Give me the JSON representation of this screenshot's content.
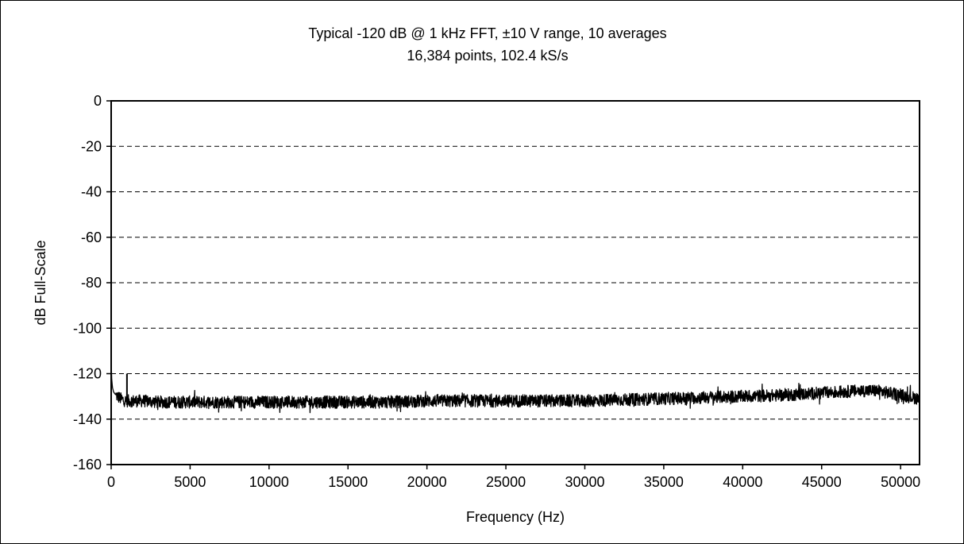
{
  "chart_data": {
    "type": "line",
    "title": "Typical -120 dB @ 1 kHz FFT, ±10 V range, 10 averages",
    "subtitle": "16,384 points, 102.4 kS/s",
    "xlabel": "Frequency (Hz)",
    "ylabel": "dB Full-Scale",
    "xlim": [
      0,
      51200
    ],
    "ylim": [
      -160,
      0
    ],
    "x_ticks": [
      0,
      5000,
      10000,
      15000,
      20000,
      25000,
      30000,
      35000,
      40000,
      45000,
      50000
    ],
    "y_ticks": [
      0,
      -20,
      -40,
      -60,
      -80,
      -100,
      -120,
      -140,
      -160
    ],
    "grid": "horizontal dashed",
    "legend": "none",
    "series": [
      {
        "color": "#000000",
        "peaks": [
          {
            "x": 1000,
            "y": -120
          }
        ],
        "x": [
          0,
          30,
          80,
          150,
          250,
          400,
          600,
          900,
          1200,
          2000,
          3000,
          5000,
          7500,
          10000,
          12500,
          15000,
          17500,
          20000,
          22500,
          25000,
          27500,
          30000,
          32500,
          35000,
          37500,
          40000,
          42500,
          45000,
          47500,
          48500,
          50000,
          51200
        ],
        "y": [
          -114,
          -122,
          -126,
          -128,
          -129,
          -130,
          -131,
          -132,
          -132,
          -132,
          -132.5,
          -132.5,
          -132.5,
          -132.5,
          -132.5,
          -132.5,
          -132.5,
          -132,
          -132,
          -132,
          -132,
          -132,
          -131.5,
          -131,
          -130.5,
          -130,
          -129.5,
          -128.5,
          -127.5,
          -127.5,
          -129.5,
          -131
        ]
      }
    ]
  }
}
